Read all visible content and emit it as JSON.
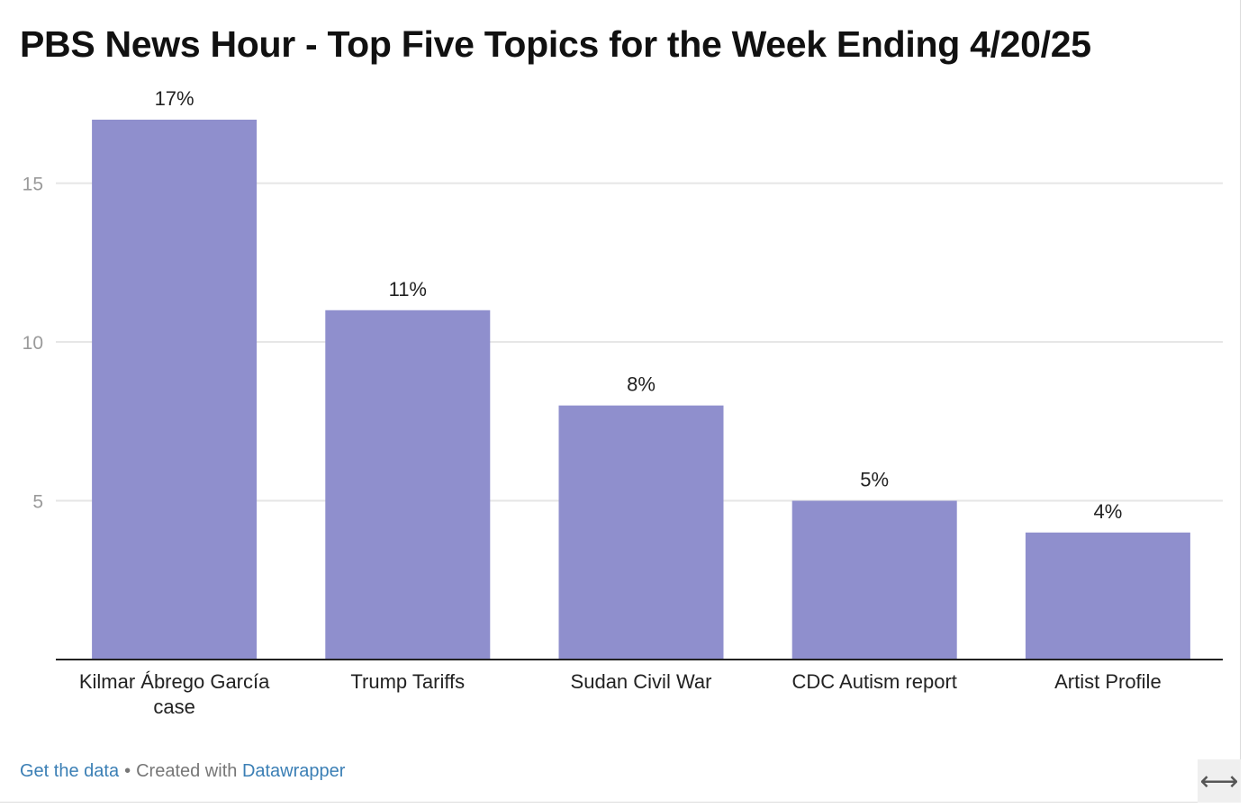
{
  "title": "PBS News Hour - Top Five Topics for the Week Ending 4/20/25",
  "colors": {
    "bar": "#8f8fcd",
    "grid": "#e6e6e6",
    "axis": "#222222",
    "tick_label": "#9a9a9a",
    "link": "#3b7fb5"
  },
  "chart_data": {
    "type": "bar",
    "categories": [
      [
        "Kilmar Ábrego García",
        "case"
      ],
      [
        "Trump Tariffs"
      ],
      [
        "Sudan Civil War"
      ],
      [
        "CDC Autism report"
      ],
      [
        "Artist Profile"
      ]
    ],
    "values": [
      17,
      11,
      8,
      5,
      4
    ],
    "data_labels": [
      "17%",
      "11%",
      "8%",
      "5%",
      "4%"
    ],
    "y_ticks": [
      5,
      10,
      15
    ],
    "ylim": [
      0,
      17
    ],
    "grid": true,
    "xlabel": "",
    "ylabel": ""
  },
  "footer": {
    "get_data": "Get the data",
    "separator": "•",
    "created_with": "Created with",
    "tool": "Datawrapper"
  },
  "expand_icon": "⟷"
}
